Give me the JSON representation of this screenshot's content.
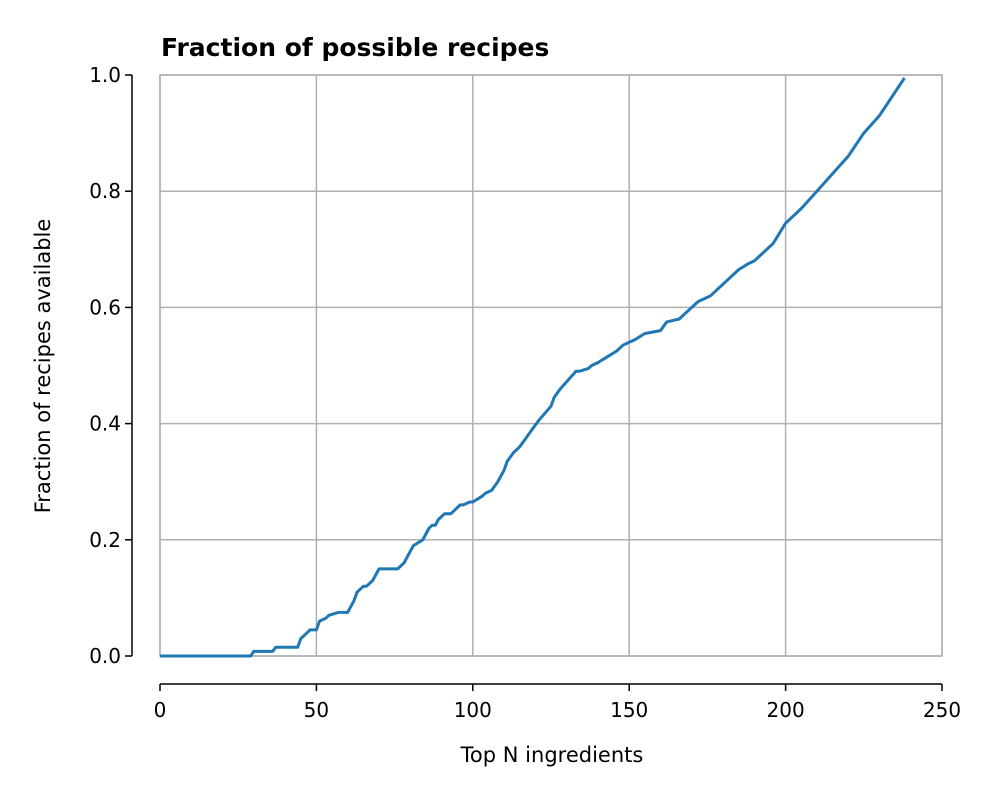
{
  "chart_data": {
    "type": "line",
    "title": "Fraction of possible recipes",
    "xlabel": "Top N ingredients",
    "ylabel": "Fraction of recipes available",
    "xlim": [
      0,
      250
    ],
    "ylim": [
      0,
      1.0
    ],
    "x_ticks": [
      "0",
      "50",
      "100",
      "150",
      "200",
      "250"
    ],
    "y_ticks": [
      "0.0",
      "0.2",
      "0.4",
      "0.6",
      "0.8",
      "1.0"
    ],
    "grid": true,
    "line_color": "#1f77b4",
    "series": [
      {
        "x": [
          0,
          29,
          30,
          36,
          37,
          44,
          45,
          47,
          48,
          50,
          51,
          53,
          54,
          57,
          58,
          60,
          61,
          62,
          63,
          65,
          66,
          67,
          68,
          70,
          71,
          76,
          77,
          78,
          79,
          80,
          81,
          84,
          85,
          86,
          87,
          88,
          89,
          90,
          91,
          92,
          93,
          96,
          97,
          99,
          100,
          103,
          104,
          106,
          108,
          110,
          111,
          113,
          115,
          117,
          119,
          121,
          125,
          126,
          128,
          133,
          134,
          137,
          138,
          140,
          143,
          146,
          148,
          150,
          152,
          155,
          160,
          162,
          166,
          168,
          170,
          172,
          174,
          176,
          180,
          182,
          185,
          188,
          190,
          192,
          196,
          200,
          205,
          210,
          215,
          220,
          225,
          230,
          238
        ],
        "y": [
          0.0,
          0.0,
          0.008,
          0.008,
          0.015,
          0.015,
          0.03,
          0.04,
          0.045,
          0.045,
          0.06,
          0.065,
          0.07,
          0.075,
          0.075,
          0.075,
          0.085,
          0.095,
          0.11,
          0.12,
          0.12,
          0.125,
          0.13,
          0.15,
          0.15,
          0.15,
          0.155,
          0.16,
          0.17,
          0.18,
          0.19,
          0.2,
          0.21,
          0.22,
          0.225,
          0.225,
          0.235,
          0.24,
          0.245,
          0.245,
          0.245,
          0.26,
          0.26,
          0.265,
          0.265,
          0.275,
          0.28,
          0.285,
          0.3,
          0.32,
          0.335,
          0.35,
          0.36,
          0.375,
          0.39,
          0.405,
          0.43,
          0.445,
          0.46,
          0.49,
          0.49,
          0.495,
          0.5,
          0.505,
          0.515,
          0.525,
          0.535,
          0.54,
          0.545,
          0.555,
          0.56,
          0.575,
          0.58,
          0.59,
          0.6,
          0.61,
          0.615,
          0.62,
          0.64,
          0.65,
          0.665,
          0.675,
          0.68,
          0.69,
          0.71,
          0.745,
          0.77,
          0.8,
          0.83,
          0.86,
          0.9,
          0.93,
          0.995
        ]
      }
    ]
  }
}
